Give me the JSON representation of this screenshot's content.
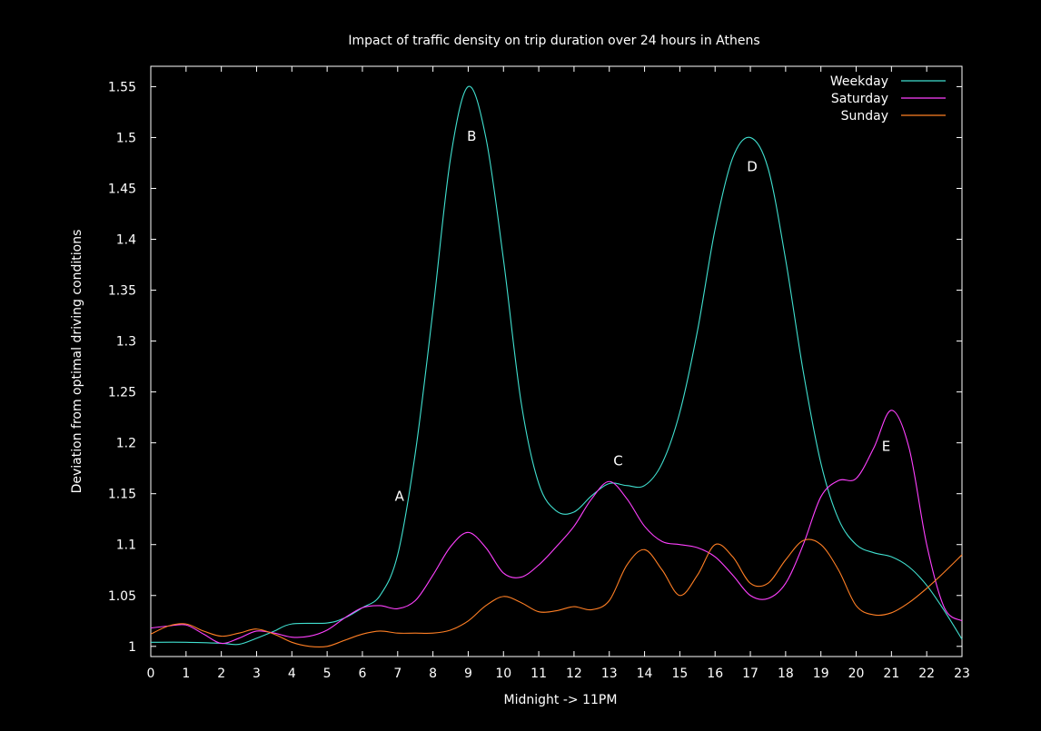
{
  "chart_data": {
    "type": "line",
    "title": "Impact of traffic density on trip duration over 24 hours in Athens",
    "xlabel": "Midnight -> 11PM",
    "ylabel": "Deviation from optimal driving conditions",
    "xlim": [
      0,
      23
    ],
    "ylim": [
      0.99,
      1.57
    ],
    "x_ticks": [
      "0",
      "1",
      "2",
      "3",
      "4",
      "5",
      "6",
      "7",
      "8",
      "9",
      "10",
      "11",
      "12",
      "13",
      "14",
      "15",
      "16",
      "17",
      "18",
      "19",
      "20",
      "21",
      "22",
      "23"
    ],
    "y_ticks": [
      "1",
      "1.05",
      "1.1",
      "1.15",
      "1.2",
      "1.25",
      "1.3",
      "1.35",
      "1.4",
      "1.45",
      "1.5",
      "1.55"
    ],
    "grid": false,
    "legend_position": "top-right",
    "series": [
      {
        "name": "Weekday",
        "color": "#40e0d0",
        "points": [
          [
            0,
            1.004
          ],
          [
            1,
            1.004
          ],
          [
            2,
            1.003
          ],
          [
            2.5,
            1.002
          ],
          [
            3,
            1.008
          ],
          [
            3.5,
            1.015
          ],
          [
            4,
            1.022
          ],
          [
            5,
            1.023
          ],
          [
            5.5,
            1.028
          ],
          [
            6,
            1.038
          ],
          [
            6.5,
            1.05
          ],
          [
            7,
            1.09
          ],
          [
            7.5,
            1.19
          ],
          [
            8,
            1.33
          ],
          [
            8.5,
            1.48
          ],
          [
            9,
            1.55
          ],
          [
            9.5,
            1.5
          ],
          [
            10,
            1.38
          ],
          [
            10.5,
            1.24
          ],
          [
            11,
            1.16
          ],
          [
            11.5,
            1.133
          ],
          [
            12,
            1.132
          ],
          [
            12.5,
            1.148
          ],
          [
            13,
            1.16
          ],
          [
            13.5,
            1.158
          ],
          [
            14,
            1.158
          ],
          [
            14.5,
            1.18
          ],
          [
            15,
            1.23
          ],
          [
            15.5,
            1.31
          ],
          [
            16,
            1.41
          ],
          [
            16.5,
            1.48
          ],
          [
            17,
            1.5
          ],
          [
            17.5,
            1.47
          ],
          [
            18,
            1.38
          ],
          [
            18.5,
            1.27
          ],
          [
            19,
            1.18
          ],
          [
            19.5,
            1.125
          ],
          [
            20,
            1.1
          ],
          [
            20.5,
            1.092
          ],
          [
            21,
            1.088
          ],
          [
            21.5,
            1.078
          ],
          [
            22,
            1.06
          ],
          [
            22.5,
            1.035
          ],
          [
            23,
            1.007
          ]
        ]
      },
      {
        "name": "Saturday",
        "color": "#ff40ff",
        "points": [
          [
            0,
            1.018
          ],
          [
            0.5,
            1.02
          ],
          [
            1,
            1.021
          ],
          [
            1.5,
            1.012
          ],
          [
            2,
            1.003
          ],
          [
            2.5,
            1.008
          ],
          [
            3,
            1.015
          ],
          [
            3.5,
            1.013
          ],
          [
            4,
            1.009
          ],
          [
            4.5,
            1.01
          ],
          [
            5,
            1.016
          ],
          [
            5.5,
            1.028
          ],
          [
            6,
            1.038
          ],
          [
            6.5,
            1.04
          ],
          [
            7,
            1.037
          ],
          [
            7.5,
            1.045
          ],
          [
            8,
            1.07
          ],
          [
            8.5,
            1.098
          ],
          [
            9,
            1.112
          ],
          [
            9.5,
            1.097
          ],
          [
            10,
            1.072
          ],
          [
            10.5,
            1.068
          ],
          [
            11,
            1.08
          ],
          [
            11.5,
            1.098
          ],
          [
            12,
            1.118
          ],
          [
            12.5,
            1.145
          ],
          [
            13,
            1.162
          ],
          [
            13.5,
            1.145
          ],
          [
            14,
            1.118
          ],
          [
            14.5,
            1.103
          ],
          [
            15,
            1.1
          ],
          [
            15.5,
            1.097
          ],
          [
            16,
            1.088
          ],
          [
            16.5,
            1.07
          ],
          [
            17,
            1.05
          ],
          [
            17.5,
            1.047
          ],
          [
            18,
            1.062
          ],
          [
            18.5,
            1.1
          ],
          [
            19,
            1.147
          ],
          [
            19.5,
            1.163
          ],
          [
            20,
            1.165
          ],
          [
            20.5,
            1.195
          ],
          [
            21,
            1.232
          ],
          [
            21.5,
            1.195
          ],
          [
            22,
            1.1
          ],
          [
            22.5,
            1.038
          ],
          [
            23,
            1.025
          ]
        ]
      },
      {
        "name": "Sunday",
        "color": "#ff7f24",
        "points": [
          [
            0,
            1.012
          ],
          [
            0.5,
            1.02
          ],
          [
            1,
            1.022
          ],
          [
            1.5,
            1.015
          ],
          [
            2,
            1.01
          ],
          [
            2.5,
            1.013
          ],
          [
            3,
            1.017
          ],
          [
            3.5,
            1.012
          ],
          [
            4,
            1.004
          ],
          [
            4.5,
            1.0
          ],
          [
            5,
            1.0
          ],
          [
            5.5,
            1.006
          ],
          [
            6,
            1.012
          ],
          [
            6.5,
            1.015
          ],
          [
            7,
            1.013
          ],
          [
            7.5,
            1.013
          ],
          [
            8,
            1.013
          ],
          [
            8.5,
            1.016
          ],
          [
            9,
            1.025
          ],
          [
            9.5,
            1.04
          ],
          [
            10,
            1.049
          ],
          [
            10.5,
            1.043
          ],
          [
            11,
            1.034
          ],
          [
            11.5,
            1.035
          ],
          [
            12,
            1.039
          ],
          [
            12.5,
            1.036
          ],
          [
            13,
            1.045
          ],
          [
            13.5,
            1.08
          ],
          [
            14,
            1.095
          ],
          [
            14.5,
            1.075
          ],
          [
            15,
            1.05
          ],
          [
            15.5,
            1.07
          ],
          [
            16,
            1.1
          ],
          [
            16.5,
            1.088
          ],
          [
            17,
            1.062
          ],
          [
            17.5,
            1.062
          ],
          [
            18,
            1.085
          ],
          [
            18.5,
            1.104
          ],
          [
            19,
            1.1
          ],
          [
            19.5,
            1.075
          ],
          [
            20,
            1.04
          ],
          [
            20.5,
            1.031
          ],
          [
            21,
            1.033
          ],
          [
            21.5,
            1.043
          ],
          [
            22,
            1.057
          ],
          [
            22.5,
            1.073
          ],
          [
            23,
            1.09
          ]
        ]
      }
    ],
    "annotations": [
      {
        "text": "A",
        "x": 7.05,
        "y": 1.143
      },
      {
        "text": "B",
        "x": 9.1,
        "y": 1.497
      },
      {
        "text": "C",
        "x": 13.25,
        "y": 1.178
      },
      {
        "text": "D",
        "x": 17.05,
        "y": 1.467
      },
      {
        "text": "E",
        "x": 20.85,
        "y": 1.192
      }
    ]
  }
}
